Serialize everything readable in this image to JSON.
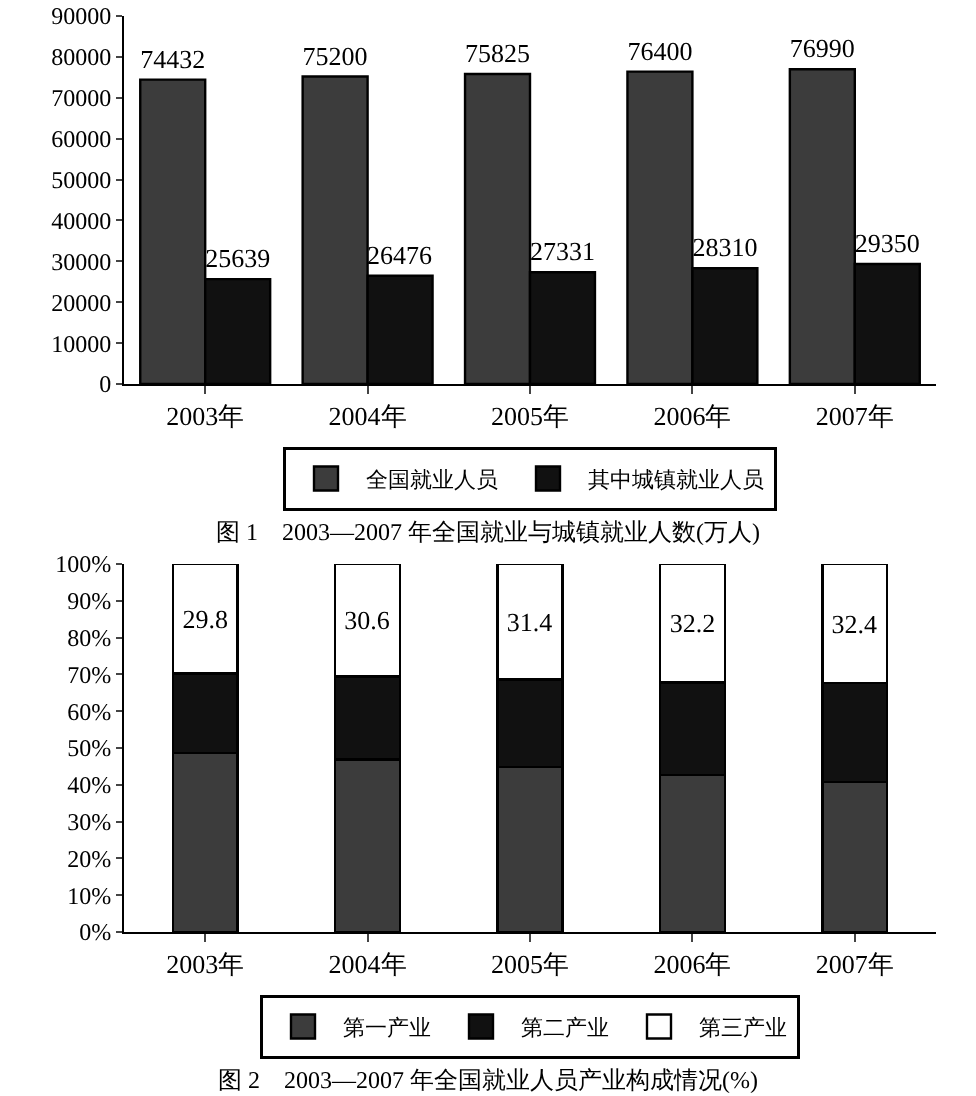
{
  "chart_data": [
    {
      "type": "bar",
      "title": "图 1　2003—2007 年全国就业与城镇就业人数(万人)",
      "categories": [
        "2003年",
        "2004年",
        "2005年",
        "2006年",
        "2007年"
      ],
      "series": [
        {
          "name": "全国就业人员",
          "color": "#3c3c3c",
          "values": [
            74432,
            75200,
            75825,
            76400,
            76990
          ]
        },
        {
          "name": "其中城镇就业人员",
          "color": "#111111",
          "values": [
            25639,
            26476,
            27331,
            28310,
            29350
          ]
        }
      ],
      "ylim": [
        0,
        90000
      ],
      "yticks": [
        0,
        10000,
        20000,
        30000,
        40000,
        50000,
        60000,
        70000,
        80000,
        90000
      ],
      "data_labels": true,
      "legend": "bottom",
      "grid": false
    },
    {
      "type": "bar",
      "stacked": true,
      "title": "图 2　2003—2007 年全国就业人员产业构成情况(%)",
      "categories": [
        "2003年",
        "2004年",
        "2005年",
        "2006年",
        "2007年"
      ],
      "series": [
        {
          "name": "第一产业",
          "color": "#3c3c3c",
          "values": [
            48.6,
            46.9,
            44.8,
            42.6,
            40.8
          ]
        },
        {
          "name": "第二产业",
          "color": "#111111",
          "values": [
            21.6,
            22.5,
            23.8,
            25.2,
            26.8
          ]
        },
        {
          "name": "第三产业",
          "color": "#ffffff",
          "values": [
            29.8,
            30.6,
            31.4,
            32.2,
            32.4
          ],
          "value_labels": [
            "29.8",
            "30.6",
            "31.4",
            "32.2",
            "32.4"
          ]
        }
      ],
      "ylim": [
        0,
        100
      ],
      "yticks": [
        {
          "value": 0,
          "label": "0%"
        },
        {
          "value": 10,
          "label": "10%"
        },
        {
          "value": 20,
          "label": "20%"
        },
        {
          "value": 30,
          "label": "30%"
        },
        {
          "value": 40,
          "label": "40%"
        },
        {
          "value": 50,
          "label": "50%"
        },
        {
          "value": 60,
          "label": "60%"
        },
        {
          "value": 70,
          "label": "70%"
        },
        {
          "value": 80,
          "label": "80%"
        },
        {
          "value": 90,
          "label": "90%"
        },
        {
          "value": 100,
          "label": "100%"
        }
      ],
      "legend": "bottom",
      "grid": false
    }
  ]
}
